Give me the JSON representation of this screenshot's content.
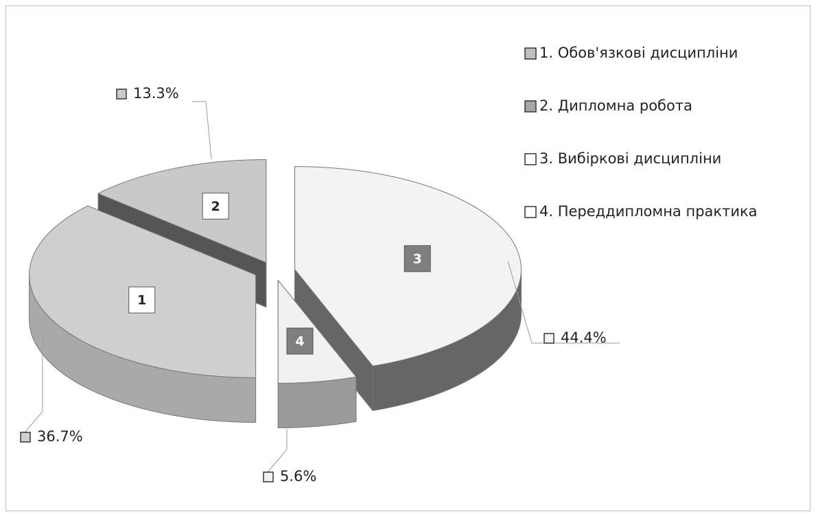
{
  "chart_data": {
    "type": "pie",
    "categories": [
      "1.  Обов'язкові дисципліни",
      "2.  Дипломна робота",
      "3.  Вибіркові дисципліни",
      "4.  Переддипломна практика"
    ],
    "values": [
      36.7,
      13.3,
      44.4,
      5.6
    ],
    "value_labels": [
      "36.7%",
      "13.3%",
      "44.4%",
      "5.6%"
    ],
    "slice_labels": [
      "1",
      "2",
      "3",
      "4"
    ],
    "colors": [
      "#cfcfcf",
      "#c9c9c9",
      "#f3f3f3",
      "#f1f1f1"
    ],
    "side_colors": [
      "#a9a9a9",
      "#555555",
      "#666666",
      "#9a9a9a"
    ],
    "legend": "right"
  }
}
